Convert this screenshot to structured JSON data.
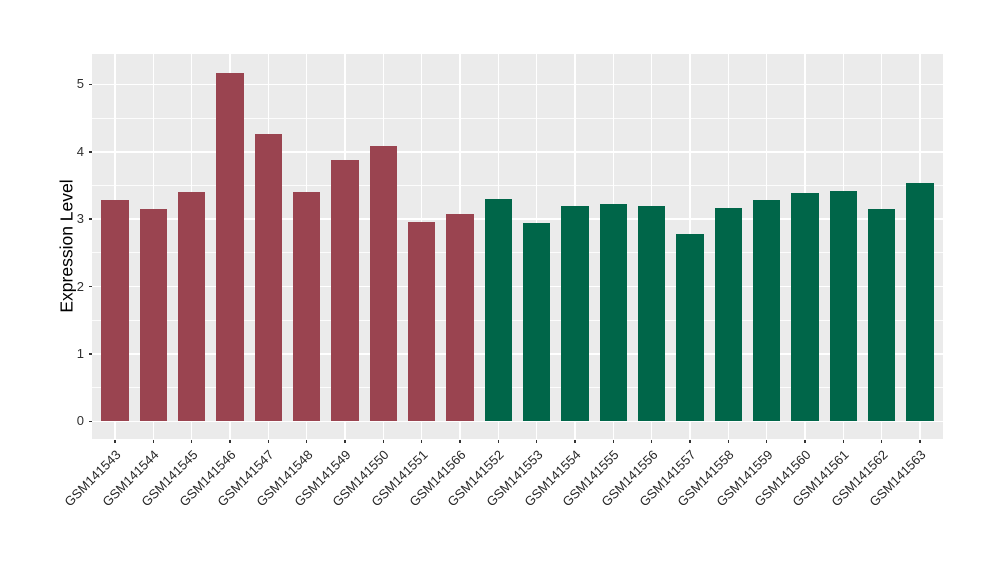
{
  "figure": {
    "background_color": "#FFFFFF",
    "panel_background_color": "#EBEBEB",
    "gridline_color": "#FFFFFF",
    "tick_color": "#333333"
  },
  "chart_data": {
    "type": "bar",
    "title": "",
    "xlabel": "",
    "ylabel": "Expression Level",
    "legend_position": "none",
    "grid": true,
    "x_tick_rotation_deg": 45,
    "yticks": [
      0,
      1,
      2,
      3,
      4,
      5
    ],
    "minor_yticks": [
      0.5,
      1.5,
      2.5,
      3.5,
      4.5
    ],
    "ylim": [
      -0.26,
      5.45
    ],
    "categories": [
      "GSM141543",
      "GSM141544",
      "GSM141545",
      "GSM141546",
      "GSM141547",
      "GSM141548",
      "GSM141549",
      "GSM141550",
      "GSM141551",
      "GSM141566",
      "GSM141552",
      "GSM141553",
      "GSM141554",
      "GSM141555",
      "GSM141556",
      "GSM141557",
      "GSM141558",
      "GSM141559",
      "GSM141560",
      "GSM141561",
      "GSM141562",
      "GSM141563"
    ],
    "values": [
      3.28,
      3.15,
      3.4,
      5.17,
      4.27,
      3.41,
      3.88,
      4.09,
      2.96,
      3.08,
      3.3,
      2.95,
      3.2,
      3.22,
      3.19,
      2.78,
      3.17,
      3.29,
      3.39,
      3.42,
      3.15,
      3.54
    ],
    "group_colors": [
      "#9A4450",
      "#006649"
    ],
    "bar_group_index": [
      0,
      0,
      0,
      0,
      0,
      0,
      0,
      0,
      0,
      0,
      1,
      1,
      1,
      1,
      1,
      1,
      1,
      1,
      1,
      1,
      1,
      1
    ]
  }
}
